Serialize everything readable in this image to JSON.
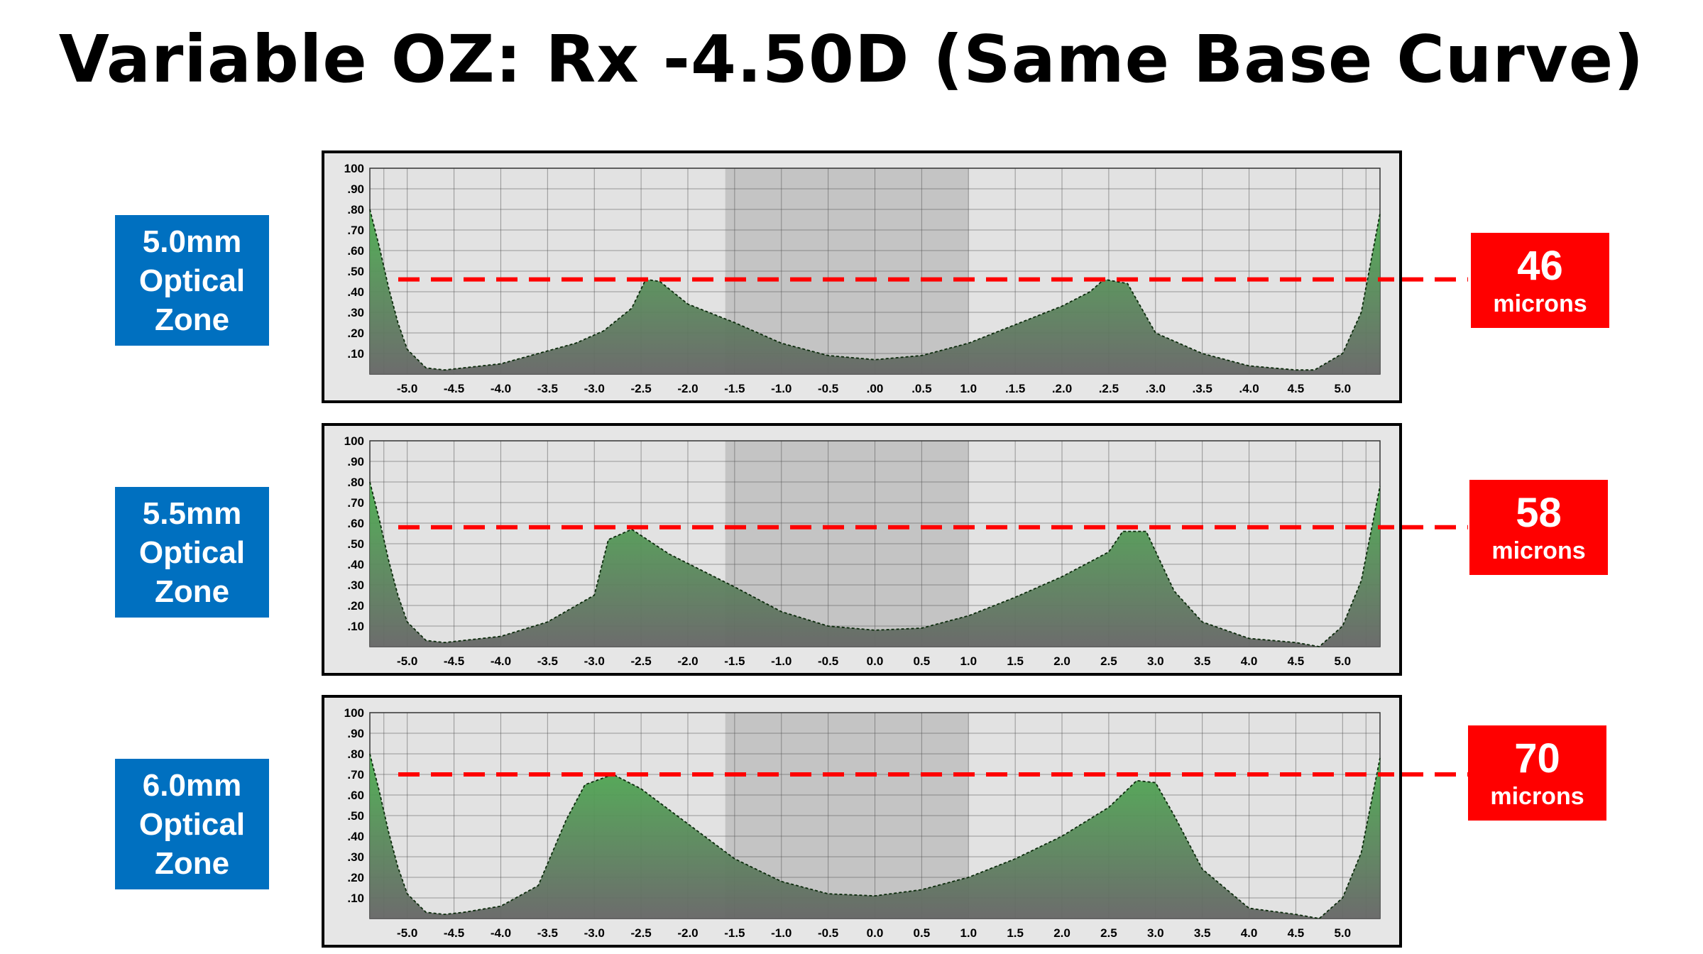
{
  "title": "Variable OZ: Rx -4.50D (Same Base Curve)",
  "colors": {
    "label_bg": "#0070c0",
    "depth_bg": "#ff0000",
    "chart_bg": "#e6e6e6",
    "center_band": "#c4c4c4",
    "fill_top": "#4caf50",
    "fill_bottom": "#666666",
    "grid": "#555555",
    "dash": "#ff0000"
  },
  "panels": [
    {
      "label_lines": [
        "5.0mm",
        "Optical",
        "Zone"
      ],
      "depth_value": "46",
      "depth_unit": "microns"
    },
    {
      "label_lines": [
        "5.5mm",
        "Optical",
        "Zone"
      ],
      "depth_value": "58",
      "depth_unit": "microns"
    },
    {
      "label_lines": [
        "6.0mm",
        "Optical",
        "Zone"
      ],
      "depth_value": "70",
      "depth_unit": "microns"
    }
  ],
  "chart_data": [
    {
      "type": "area",
      "ylim": [
        0,
        100
      ],
      "xlim": [
        -5.4,
        5.4
      ],
      "y_tick_labels": [
        "100",
        ".90",
        ".80",
        ".70",
        ".60",
        ".50",
        ".40",
        ".30",
        ".20",
        ".10"
      ],
      "x_tick_labels": [
        "-5.0",
        "-4.5",
        "-4.0",
        "-3.5",
        "-3.0",
        "-2.5",
        "-2.0",
        "-1.5",
        "-1.0",
        "-0.5",
        ".00",
        ".0.5",
        "1.0",
        ".1.5",
        ".2.0",
        ".2.5",
        ".3.0",
        ".3.5",
        ".4.0",
        "4.5",
        "5.0"
      ],
      "highlight_x": [
        -1.6,
        1.0
      ],
      "reference_y": 46,
      "x": [
        -5.4,
        -5.3,
        -5.2,
        -5.1,
        -5.0,
        -4.8,
        -4.6,
        -4.4,
        -4.0,
        -3.6,
        -3.2,
        -2.9,
        -2.6,
        -2.45,
        -2.3,
        -2.0,
        -1.5,
        -1.0,
        -0.5,
        0.0,
        0.5,
        1.0,
        1.5,
        2.0,
        2.3,
        2.45,
        2.7,
        3.0,
        3.5,
        4.0,
        4.5,
        4.7,
        5.0,
        5.2,
        5.4
      ],
      "y": [
        80,
        62,
        42,
        25,
        12,
        3,
        2,
        3,
        5,
        10,
        15,
        21,
        32,
        46,
        45,
        34,
        25,
        15,
        9,
        7,
        9,
        15,
        24,
        33,
        40,
        46,
        44,
        20,
        10,
        4,
        2,
        2,
        10,
        30,
        78
      ]
    },
    {
      "type": "area",
      "ylim": [
        0,
        100
      ],
      "xlim": [
        -5.4,
        5.4
      ],
      "y_tick_labels": [
        "100",
        ".90",
        ".80",
        ".70",
        ".60",
        ".50",
        ".40",
        ".30",
        ".20",
        ".10"
      ],
      "x_tick_labels": [
        "-5.0",
        "-4.5",
        "-4.0",
        "-3.5",
        "-3.0",
        "-2.5",
        "-2.0",
        "-1.5",
        "-1.0",
        "-0.5",
        "0.0",
        "0.5",
        "1.0",
        "1.5",
        "2.0",
        "2.5",
        "3.0",
        "3.5",
        "4.0",
        "4.5",
        "5.0"
      ],
      "highlight_x": [
        -1.6,
        1.0
      ],
      "reference_y": 58,
      "x": [
        -5.4,
        -5.3,
        -5.2,
        -5.1,
        -5.0,
        -4.8,
        -4.6,
        -4.4,
        -4.0,
        -3.5,
        -3.0,
        -2.85,
        -2.6,
        -2.2,
        -1.5,
        -1.0,
        -0.5,
        0.0,
        0.5,
        1.0,
        1.5,
        2.0,
        2.5,
        2.65,
        2.9,
        3.2,
        3.5,
        4.0,
        4.5,
        4.75,
        5.0,
        5.2,
        5.4
      ],
      "y": [
        80,
        62,
        42,
        25,
        12,
        3,
        2,
        3,
        5,
        12,
        25,
        52,
        57,
        45,
        29,
        17,
        10,
        8,
        9,
        15,
        24,
        34,
        46,
        56,
        56,
        27,
        12,
        4,
        2,
        0,
        10,
        32,
        78
      ]
    },
    {
      "type": "area",
      "ylim": [
        0,
        100
      ],
      "xlim": [
        -5.4,
        5.4
      ],
      "y_tick_labels": [
        "100",
        ".90",
        ".80",
        ".70",
        ".60",
        ".50",
        ".40",
        ".30",
        ".20",
        ".10"
      ],
      "x_tick_labels": [
        "-5.0",
        "-4.5",
        "-4.0",
        "-3.5",
        "-3.0",
        "-2.5",
        "-2.0",
        "-1.5",
        "-1.0",
        "-0.5",
        "0.0",
        "0.5",
        "1.0",
        "1.5",
        "2.0",
        "2.5",
        "3.0",
        "3.5",
        "4.0",
        "4.5",
        "5.0"
      ],
      "highlight_x": [
        -1.6,
        1.0
      ],
      "reference_y": 70,
      "x": [
        -5.4,
        -5.3,
        -5.2,
        -5.1,
        -5.0,
        -4.8,
        -4.6,
        -4.4,
        -4.0,
        -3.6,
        -3.3,
        -3.1,
        -2.8,
        -2.5,
        -2.0,
        -1.5,
        -1.0,
        -0.5,
        0.0,
        0.5,
        1.0,
        1.5,
        2.0,
        2.5,
        2.8,
        3.0,
        3.2,
        3.5,
        4.0,
        4.5,
        4.75,
        5.0,
        5.2,
        5.4
      ],
      "y": [
        80,
        62,
        42,
        25,
        12,
        3,
        2,
        3,
        6,
        16,
        48,
        65,
        70,
        63,
        46,
        29,
        18,
        12,
        11,
        14,
        20,
        29,
        40,
        54,
        67,
        66,
        50,
        24,
        5,
        2,
        0,
        10,
        32,
        78
      ]
    }
  ]
}
